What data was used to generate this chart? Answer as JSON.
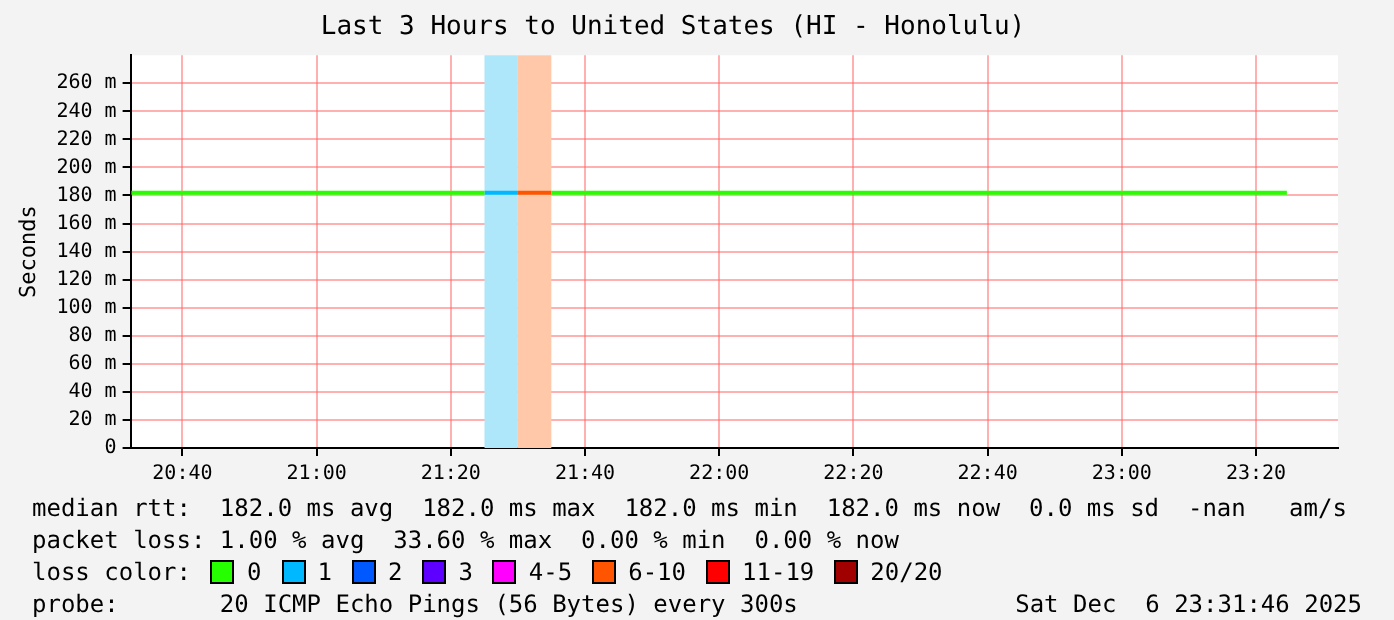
{
  "chart_data": {
    "type": "line",
    "title": "Last 3 Hours to United States (HI - Honolulu)",
    "ylabel": "Seconds",
    "legend_title": "loss color:",
    "legend": "bottom",
    "grid": true,
    "marker": "none",
    "line_style": "solid",
    "x": [
      20.54,
      21.417,
      21.5,
      21.583,
      23.41
    ],
    "series": [
      {
        "name": "0",
        "color": "#26ff00",
        "values": [
          182,
          182,
          null,
          182,
          182
        ]
      },
      {
        "name": "1",
        "color": "#00b8ff",
        "values": [
          null,
          182,
          182,
          null,
          null
        ]
      },
      {
        "name": "2",
        "color": "#0059ff",
        "values": [
          null,
          null,
          null,
          null,
          null
        ]
      },
      {
        "name": "3",
        "color": "#5e00ff",
        "values": [
          null,
          null,
          null,
          null,
          null
        ]
      },
      {
        "name": "4-5",
        "color": "#ff00ff",
        "values": [
          null,
          null,
          null,
          null,
          null
        ]
      },
      {
        "name": "6-10",
        "color": "#ff5500",
        "values": [
          null,
          null,
          182,
          182,
          null
        ]
      },
      {
        "name": "11-19",
        "color": "#ff0000",
        "values": [
          null,
          null,
          null,
          null,
          null
        ]
      },
      {
        "name": "20/20",
        "color": "#a10000",
        "values": [
          null,
          null,
          null,
          null,
          null
        ]
      }
    ],
    "bands": [
      {
        "axis": "x",
        "from": 21.417,
        "to": 21.5,
        "color": "#aee6fa"
      },
      {
        "axis": "x",
        "from": 21.5,
        "to": 21.583,
        "color": "#ffc8a8"
      }
    ],
    "xlim": [
      20.538,
      23.537
    ],
    "xticks": [
      {
        "value": 20.6667,
        "label": "20:40"
      },
      {
        "value": 21,
        "label": "21:00"
      },
      {
        "value": 21.3333,
        "label": "21:20"
      },
      {
        "value": 21.6667,
        "label": "21:40"
      },
      {
        "value": 22,
        "label": "22:00"
      },
      {
        "value": 22.3333,
        "label": "22:20"
      },
      {
        "value": 22.6667,
        "label": "22:40"
      },
      {
        "value": 23,
        "label": "23:00"
      },
      {
        "value": 23.3333,
        "label": "23:20"
      }
    ],
    "ylim": [
      0,
      280
    ],
    "yticks": [
      0,
      {
        "value": 20,
        "label": "20 m"
      },
      {
        "value": 40,
        "label": "40 m"
      },
      {
        "value": 60,
        "label": "60 m"
      },
      {
        "value": 80,
        "label": "80 m"
      },
      {
        "value": 100,
        "label": "100 m"
      },
      {
        "value": 120,
        "label": "120 m"
      },
      {
        "value": 140,
        "label": "140 m"
      },
      {
        "value": 160,
        "label": "160 m"
      },
      {
        "value": 180,
        "label": "180 m"
      },
      {
        "value": 200,
        "label": "200 m"
      },
      {
        "value": 220,
        "label": "220 m"
      },
      {
        "value": 240,
        "label": "240 m"
      },
      {
        "value": 260,
        "label": "260 m"
      }
    ],
    "annotations": [
      "median rtt:  182.0 ms avg  182.0 ms max  182.0 ms min  182.0 ms now  0.0 ms sd  -nan   am/s",
      "packet loss: 1.00 % avg  33.60 % max  0.00 % min  0.00 % now",
      "probe:       20 ICMP Echo Pings (56 Bytes) every 300s",
      "Sat Dec  6 23:31:46 2025"
    ]
  }
}
